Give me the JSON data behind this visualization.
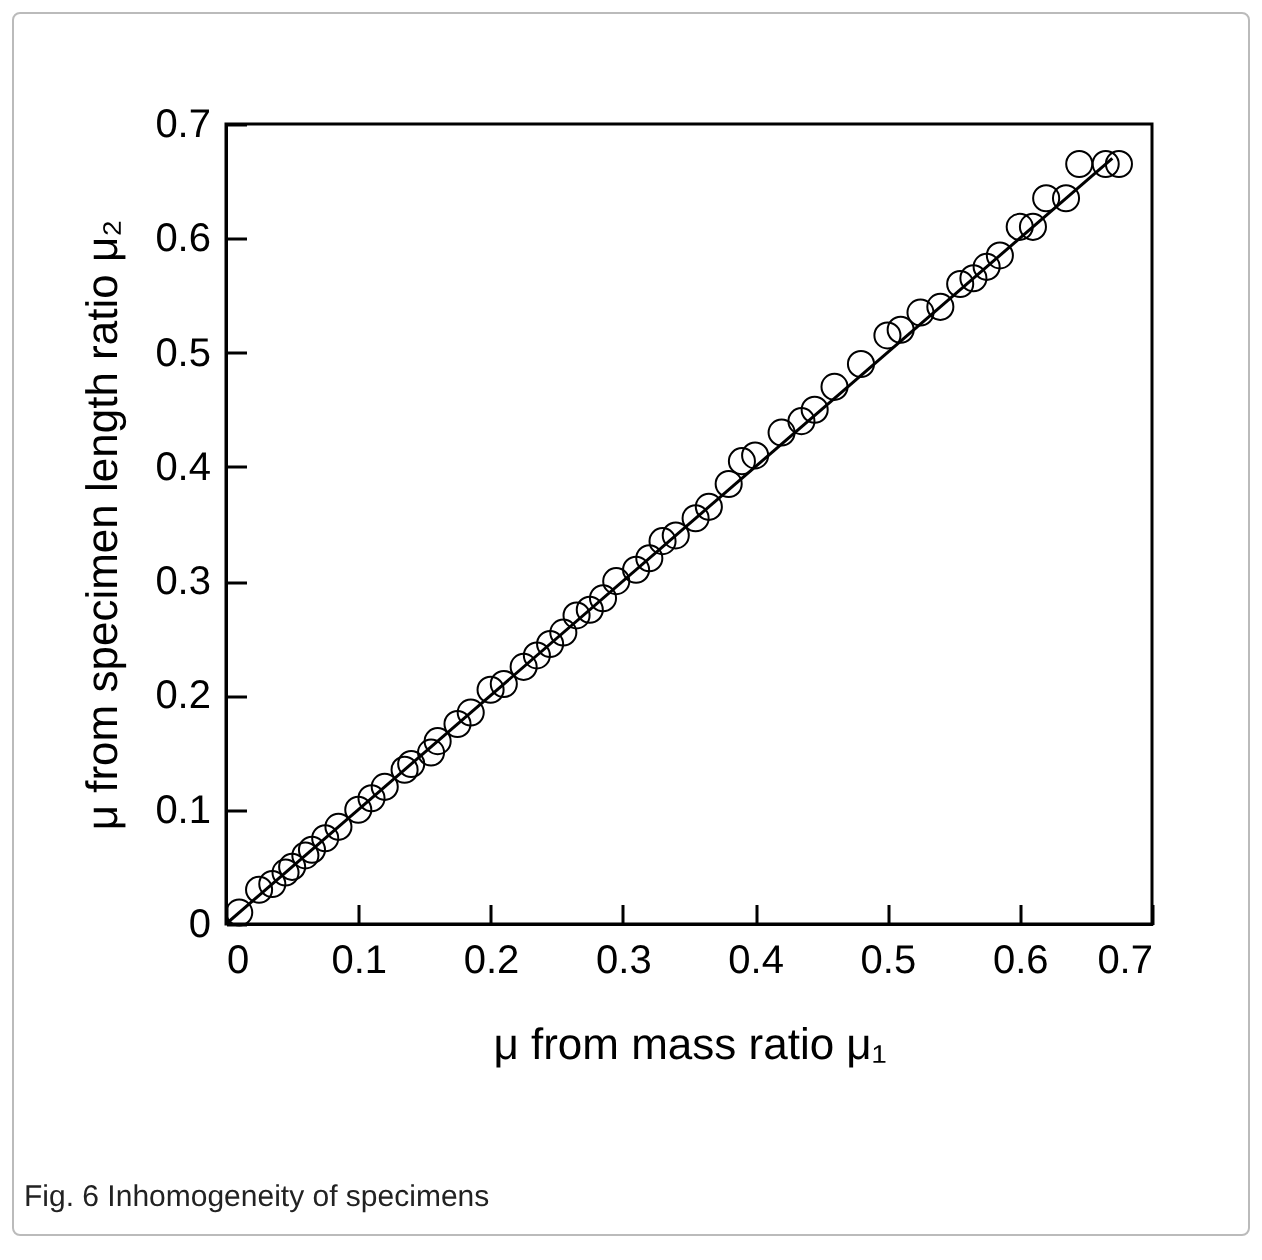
{
  "chart_data": {
    "type": "scatter",
    "xlabel": "μ from mass ratio μ₁",
    "ylabel": "μ from specimen length ratio μ₂",
    "annotations": [
      "Fig. 6 Inhomogeneity of specimens"
    ],
    "xlim": [
      0,
      0.7
    ],
    "ylim": [
      0,
      0.7
    ],
    "xticks": [
      0,
      0.1,
      0.2,
      0.3,
      0.4,
      0.5,
      0.6,
      0.7
    ],
    "yticks": [
      0,
      0.1,
      0.2,
      0.3,
      0.4,
      0.5,
      0.6,
      0.7
    ],
    "grid": false,
    "marker": "circle",
    "series": [
      {
        "color": "#000000",
        "x": [
          0.01,
          0.025,
          0.035,
          0.045,
          0.05,
          0.06,
          0.065,
          0.075,
          0.085,
          0.1,
          0.11,
          0.12,
          0.135,
          0.14,
          0.155,
          0.16,
          0.175,
          0.185,
          0.2,
          0.21,
          0.225,
          0.235,
          0.245,
          0.255,
          0.265,
          0.275,
          0.285,
          0.295,
          0.31,
          0.32,
          0.33,
          0.34,
          0.355,
          0.365,
          0.38,
          0.39,
          0.4,
          0.42,
          0.435,
          0.445,
          0.46,
          0.48,
          0.5,
          0.51,
          0.525,
          0.54,
          0.555,
          0.565,
          0.575,
          0.585,
          0.6,
          0.61,
          0.62,
          0.635,
          0.645,
          0.665,
          0.675
        ],
        "values": [
          0.01,
          0.03,
          0.035,
          0.045,
          0.05,
          0.06,
          0.065,
          0.075,
          0.085,
          0.1,
          0.11,
          0.12,
          0.135,
          0.14,
          0.15,
          0.16,
          0.175,
          0.185,
          0.205,
          0.21,
          0.225,
          0.235,
          0.245,
          0.255,
          0.27,
          0.275,
          0.285,
          0.3,
          0.31,
          0.32,
          0.335,
          0.34,
          0.355,
          0.365,
          0.385,
          0.405,
          0.41,
          0.43,
          0.44,
          0.45,
          0.47,
          0.49,
          0.515,
          0.52,
          0.535,
          0.54,
          0.56,
          0.565,
          0.575,
          0.585,
          0.61,
          0.61,
          0.635,
          0.635,
          0.665,
          0.665,
          0.665
        ]
      },
      {
        "type": "line",
        "color": "#000000",
        "line_style": "solid",
        "marker": "none",
        "x": [
          0,
          0.67
        ],
        "values": [
          0,
          0.67
        ]
      }
    ]
  }
}
